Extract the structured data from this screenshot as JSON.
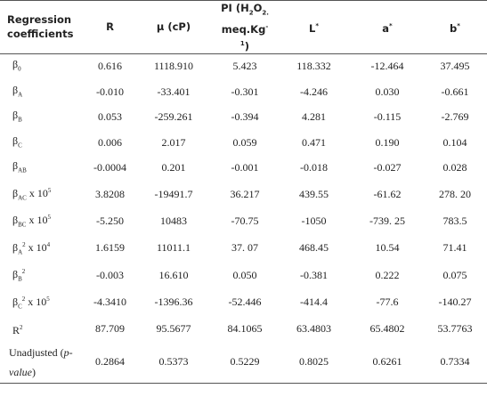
{
  "table": {
    "header": [
      [
        {
          "t": "Regression coefficients"
        }
      ],
      [
        {
          "t": "R"
        }
      ],
      [
        {
          "t": "μ (cP)"
        }
      ],
      [
        {
          "t": "PI (H"
        },
        {
          "sub": "2"
        },
        {
          "t": "O"
        },
        {
          "sub": "2."
        },
        {
          "t": " meq.Kg"
        },
        {
          "sup": "-1"
        },
        {
          "t": ")"
        }
      ],
      [
        {
          "t": "L"
        },
        {
          "sup": "*"
        }
      ],
      [
        {
          "t": "a"
        },
        {
          "sup": "*"
        }
      ],
      [
        {
          "t": "b"
        },
        {
          "sup": "*"
        }
      ]
    ],
    "rows": [
      {
        "label": [
          {
            "t": "β"
          },
          {
            "sub": "0"
          }
        ],
        "cells": [
          "0.616",
          "1118.910",
          "5.423",
          "118.332",
          "-12.464",
          "37.495"
        ]
      },
      {
        "label": [
          {
            "t": "β"
          },
          {
            "sub": "A"
          }
        ],
        "cells": [
          "-0.010",
          "-33.401",
          "-0.301",
          "-4.246",
          "0.030",
          "-0.661"
        ]
      },
      {
        "label": [
          {
            "t": "β"
          },
          {
            "sub": "B"
          }
        ],
        "cells": [
          "0.053",
          "-259.261",
          "-0.394",
          "4.281",
          "-0.115",
          "-2.769"
        ]
      },
      {
        "label": [
          {
            "t": "β"
          },
          {
            "sub": "C"
          }
        ],
        "cells": [
          "0.006",
          "2.017",
          "0.059",
          "0.471",
          "0.190",
          "0.104"
        ]
      },
      {
        "label": [
          {
            "t": "β"
          },
          {
            "sub": "AB"
          }
        ],
        "cells": [
          "-0.0004",
          "0.201",
          "-0.001",
          "-0.018",
          "-0.027",
          "0.028"
        ]
      },
      {
        "label": [
          {
            "t": "β"
          },
          {
            "sub": "AC"
          },
          {
            "t": " x 10"
          },
          {
            "sup": "5"
          }
        ],
        "cells": [
          "3.8208",
          "-19491.7",
          "36.217",
          "439.55",
          "-61.62",
          "278. 20"
        ]
      },
      {
        "label": [
          {
            "t": "β"
          },
          {
            "sub": "BC"
          },
          {
            "t": " x 10"
          },
          {
            "sup": "5"
          }
        ],
        "cells": [
          "-5.250",
          "10483",
          "-70.75",
          "-1050",
          "-739. 25",
          "783.5"
        ]
      },
      {
        "label": [
          {
            "t": "β"
          },
          {
            "sub": "A"
          },
          {
            "sup": "2"
          },
          {
            "t": " x 10"
          },
          {
            "sup": "4"
          }
        ],
        "cells": [
          "1.6159",
          "11011.1",
          "37. 07",
          "468.45",
          "10.54",
          "71.41"
        ]
      },
      {
        "label": [
          {
            "t": "β"
          },
          {
            "sub": "B"
          },
          {
            "sup": "2"
          }
        ],
        "cells": [
          "-0.003",
          "16.610",
          "0.050",
          "-0.381",
          "0.222",
          "0.075"
        ]
      },
      {
        "label": [
          {
            "t": "β"
          },
          {
            "sub": "C"
          },
          {
            "sup": "2"
          },
          {
            "t": " x 10"
          },
          {
            "sup": "5"
          }
        ],
        "cells": [
          "-4.3410",
          "-1396.36",
          "-52.446",
          "-414.4",
          "-77.6",
          "-140.27"
        ]
      },
      {
        "label": [
          {
            "t": "R"
          },
          {
            "sup": "2"
          }
        ],
        "cells": [
          "87.709",
          "95.5677",
          "84.1065",
          "63.4803",
          "65.4802",
          "53.7763"
        ]
      },
      {
        "label": [
          {
            "t": "Unadjusted ("
          },
          {
            "em": "p-value"
          },
          {
            "t": ")"
          }
        ],
        "cells": [
          "0.2864",
          "0.5373",
          "0.5229",
          "0.8025",
          "0.6261",
          "0.7334"
        ]
      }
    ]
  }
}
